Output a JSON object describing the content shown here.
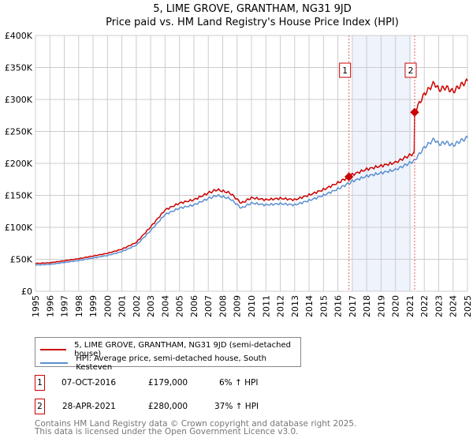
{
  "chart_data": {
    "type": "line",
    "title": "5, LIME GROVE, GRANTHAM, NG31 9JD",
    "subtitle": "Price paid vs. HM Land Registry's House Price Index (HPI)",
    "xlim": [
      1995,
      2025
    ],
    "ylim": [
      0,
      400000
    ],
    "x_ticks": [
      "1995",
      "1996",
      "1997",
      "1998",
      "1999",
      "2000",
      "2001",
      "2002",
      "2003",
      "2004",
      "2005",
      "2006",
      "2007",
      "2008",
      "2009",
      "2010",
      "2011",
      "2012",
      "2013",
      "2014",
      "2015",
      "2016",
      "2017",
      "2018",
      "2019",
      "2020",
      "2021",
      "2022",
      "2023",
      "2024",
      "2025"
    ],
    "y_ticks": [
      {
        "v": 0,
        "label": "£0"
      },
      {
        "v": 50000,
        "label": "£50K"
      },
      {
        "v": 100000,
        "label": "£100K"
      },
      {
        "v": 150000,
        "label": "£150K"
      },
      {
        "v": 200000,
        "label": "£200K"
      },
      {
        "v": 250000,
        "label": "£250K"
      },
      {
        "v": 300000,
        "label": "£300K"
      },
      {
        "v": 350000,
        "label": "£350K"
      },
      {
        "v": 400000,
        "label": "£400K"
      }
    ],
    "grid": true,
    "shaded_range": [
      2017.0,
      2021.1
    ],
    "hpi_x": [
      1995,
      1996,
      1997,
      1998,
      1999,
      2000,
      2001,
      2002,
      2003,
      2004,
      2005,
      2006,
      2007,
      2007.6,
      2008.5,
      2009.3,
      2010,
      2011,
      2012,
      2013,
      2014,
      2015,
      2016,
      2016.77,
      2017,
      2018,
      2019,
      2020,
      2021.3,
      2022,
      2022.7,
      2023,
      2023.5,
      2024,
      2024.5,
      2025
    ],
    "hpi_y": [
      41000,
      42000,
      45000,
      48000,
      52000,
      56000,
      62000,
      72000,
      95000,
      120000,
      130000,
      135000,
      145000,
      150000,
      145000,
      130000,
      138000,
      135000,
      137000,
      135000,
      142000,
      150000,
      160000,
      169000,
      172000,
      180000,
      185000,
      190000,
      204000,
      225000,
      238000,
      230000,
      233000,
      228000,
      235000,
      240000
    ],
    "series": [
      {
        "name": "5, LIME GROVE, GRANTHAM, NG31 9JD (semi-detached house)",
        "color": "#cc0000",
        "ratio_before": 1.06,
        "ratio_after": 1.37,
        "step_x": 2021.33
      },
      {
        "name": "HPI: Average price, semi-detached house, South Kesteven",
        "color": "#5b8fd0"
      }
    ],
    "sales": [
      {
        "id": "1",
        "x": 2016.77,
        "price": 179000,
        "date": "07-OCT-2016",
        "price_label": "£179,000",
        "hpi": "6% ↑ HPI"
      },
      {
        "id": "2",
        "x": 2021.33,
        "price": 280000,
        "date": "28-APR-2021",
        "price_label": "£280,000",
        "hpi": "37% ↑ HPI"
      }
    ]
  },
  "footer": {
    "line1": "Contains HM Land Registry data © Crown copyright and database right 2025.",
    "line2": "This data is licensed under the Open Government Licence v3.0."
  }
}
